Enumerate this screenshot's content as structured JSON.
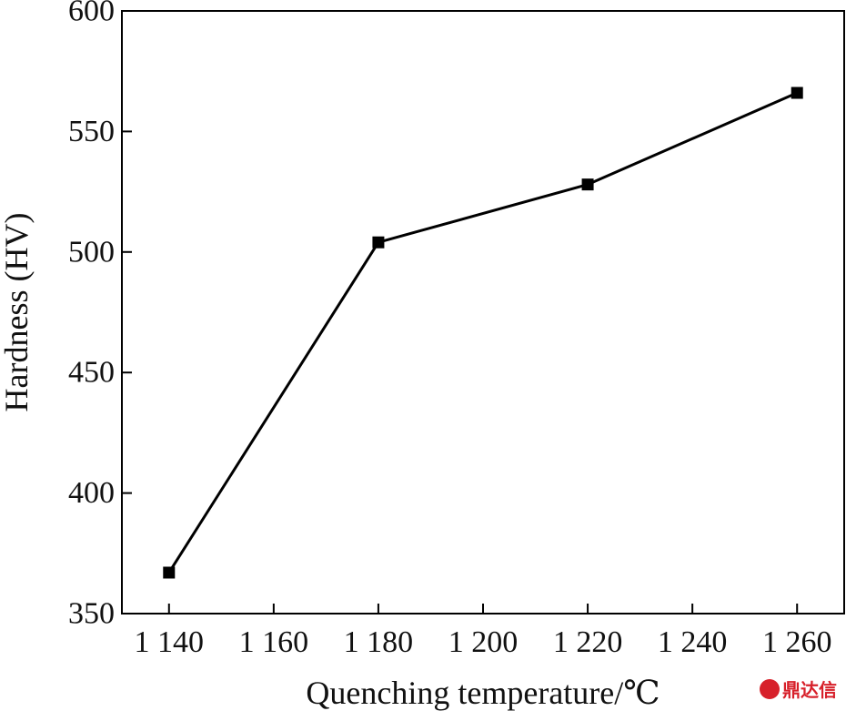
{
  "chart_data": {
    "type": "line",
    "x": [
      1140,
      1180,
      1220,
      1260
    ],
    "series": [
      {
        "values": [
          367,
          504,
          528,
          566
        ]
      }
    ],
    "xlabel": "Quenching temperature/℃",
    "ylabel": "Hardness (HV)",
    "xlim": [
      1131,
      1269
    ],
    "ylim": [
      350,
      600
    ],
    "xticks": [
      1140,
      1160,
      1180,
      1200,
      1220,
      1240,
      1260
    ],
    "xtick_labels": [
      "1 140",
      "1 160",
      "1 180",
      "1 200",
      "1 220",
      "1 240",
      "1 260"
    ],
    "yticks": [
      350,
      400,
      450,
      500,
      550,
      600
    ],
    "ytick_labels": [
      "350",
      "400",
      "450",
      "500",
      "550",
      "600"
    ],
    "marker": "square",
    "line_color": "#000000",
    "grid": false
  },
  "watermark": {
    "text": "鼎达信",
    "color": "#d7202a"
  }
}
